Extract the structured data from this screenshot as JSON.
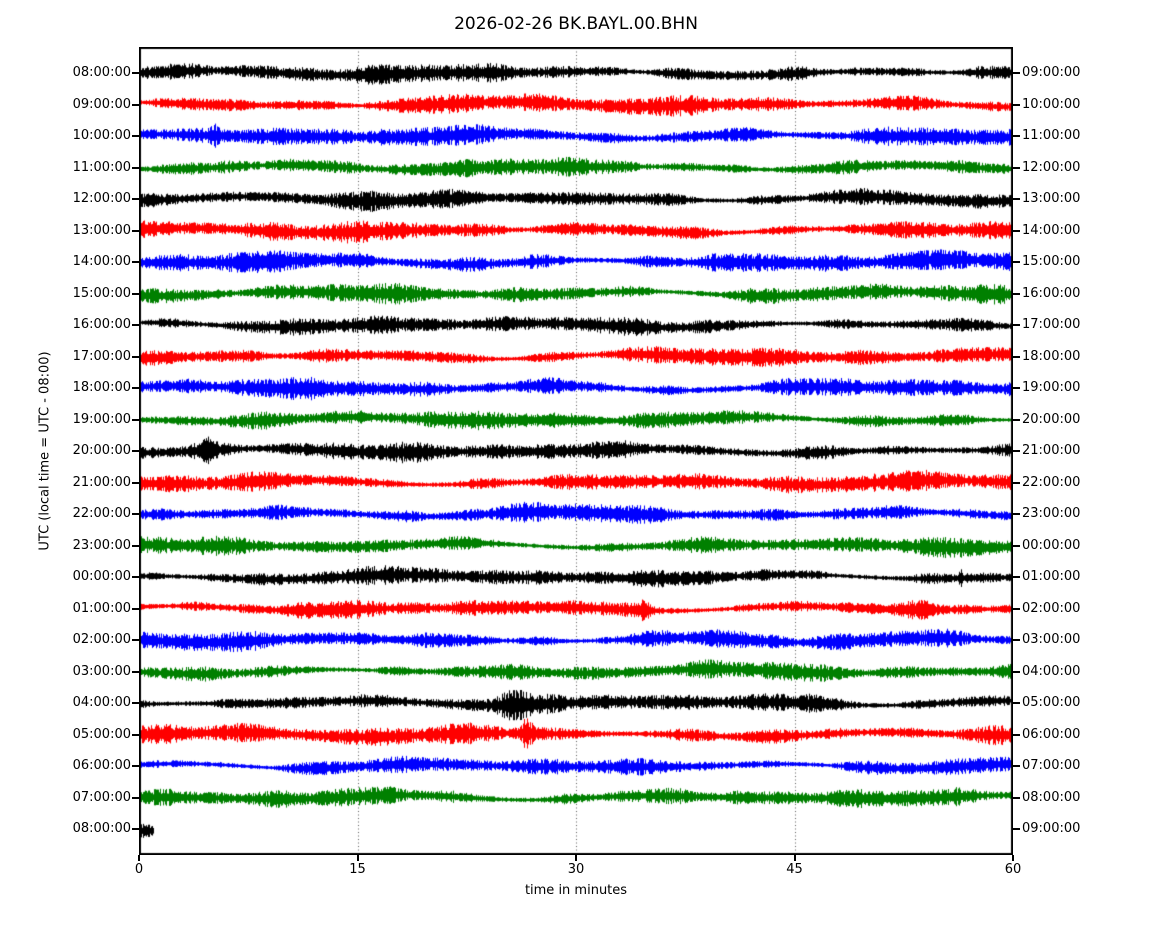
{
  "figure": {
    "title": "2026-02-26 BK.BAYL.00.BHN",
    "xlabel": "time in minutes",
    "ylabel": "UTC (local time = UTC - 08:00)"
  },
  "chart_data": {
    "type": "line",
    "variant": "seismogram-helicorder-dayplot",
    "title": "2026-02-26 BK.BAYL.00.BHN",
    "date": "2026-02-26",
    "seed_id": "BK.BAYL.00.BHN",
    "xlabel": "time in minutes",
    "ylabel": "UTC (local time = UTC - 08:00)",
    "xlim_minutes": [
      0,
      60
    ],
    "x_ticks": [
      "0",
      "15",
      "30",
      "45",
      "60"
    ],
    "grid_vertical_dotted_minutes": [
      15,
      30,
      45
    ],
    "minutes_per_row": 60,
    "timezone_note": "local time = UTC - 08:00",
    "color_cycle": [
      "#000000",
      "#ff0000",
      "#0000ff",
      "#008000"
    ],
    "traces": [
      {
        "utc_left": "08:00:00",
        "utc_right": "09:00:00",
        "color": "#000000",
        "minutes": 60,
        "seed": 101,
        "amp": 1.0
      },
      {
        "utc_left": "09:00:00",
        "utc_right": "10:00:00",
        "color": "#ff0000",
        "minutes": 60,
        "seed": 202,
        "amp": 1.05
      },
      {
        "utc_left": "10:00:00",
        "utc_right": "11:00:00",
        "color": "#0000ff",
        "minutes": 60,
        "seed": 303,
        "amp": 1.05
      },
      {
        "utc_left": "11:00:00",
        "utc_right": "12:00:00",
        "color": "#008000",
        "minutes": 60,
        "seed": 404,
        "amp": 0.95
      },
      {
        "utc_left": "12:00:00",
        "utc_right": "13:00:00",
        "color": "#000000",
        "minutes": 60,
        "seed": 505,
        "amp": 1.0
      },
      {
        "utc_left": "13:00:00",
        "utc_right": "14:00:00",
        "color": "#ff0000",
        "minutes": 60,
        "seed": 606,
        "amp": 1.05
      },
      {
        "utc_left": "14:00:00",
        "utc_right": "15:00:00",
        "color": "#0000ff",
        "minutes": 60,
        "seed": 707,
        "amp": 1.1
      },
      {
        "utc_left": "15:00:00",
        "utc_right": "16:00:00",
        "color": "#008000",
        "minutes": 60,
        "seed": 808,
        "amp": 1.0
      },
      {
        "utc_left": "16:00:00",
        "utc_right": "17:00:00",
        "color": "#000000",
        "minutes": 60,
        "seed": 909,
        "amp": 0.95
      },
      {
        "utc_left": "17:00:00",
        "utc_right": "18:00:00",
        "color": "#ff0000",
        "minutes": 60,
        "seed": 1010,
        "amp": 1.0
      },
      {
        "utc_left": "18:00:00",
        "utc_right": "19:00:00",
        "color": "#0000ff",
        "minutes": 60,
        "seed": 1111,
        "amp": 1.05
      },
      {
        "utc_left": "19:00:00",
        "utc_right": "20:00:00",
        "color": "#008000",
        "minutes": 60,
        "seed": 1212,
        "amp": 0.95
      },
      {
        "utc_left": "20:00:00",
        "utc_right": "21:00:00",
        "color": "#000000",
        "minutes": 60,
        "seed": 1313,
        "amp": 1.0
      },
      {
        "utc_left": "21:00:00",
        "utc_right": "22:00:00",
        "color": "#ff0000",
        "minutes": 60,
        "seed": 1414,
        "amp": 1.05
      },
      {
        "utc_left": "22:00:00",
        "utc_right": "23:00:00",
        "color": "#0000ff",
        "minutes": 60,
        "seed": 1515,
        "amp": 1.0
      },
      {
        "utc_left": "23:00:00",
        "utc_right": "00:00:00",
        "color": "#008000",
        "minutes": 60,
        "seed": 1616,
        "amp": 0.95
      },
      {
        "utc_left": "00:00:00",
        "utc_right": "01:00:00",
        "color": "#000000",
        "minutes": 60,
        "seed": 1717,
        "amp": 0.95
      },
      {
        "utc_left": "01:00:00",
        "utc_right": "02:00:00",
        "color": "#ff0000",
        "minutes": 60,
        "seed": 1818,
        "amp": 0.95
      },
      {
        "utc_left": "02:00:00",
        "utc_right": "03:00:00",
        "color": "#0000ff",
        "minutes": 60,
        "seed": 1919,
        "amp": 1.0
      },
      {
        "utc_left": "03:00:00",
        "utc_right": "04:00:00",
        "color": "#008000",
        "minutes": 60,
        "seed": 2020,
        "amp": 0.95
      },
      {
        "utc_left": "04:00:00",
        "utc_right": "05:00:00",
        "color": "#000000",
        "minutes": 60,
        "seed": 2121,
        "amp": 1.0
      },
      {
        "utc_left": "05:00:00",
        "utc_right": "06:00:00",
        "color": "#ff0000",
        "minutes": 60,
        "seed": 2222,
        "amp": 1.05
      },
      {
        "utc_left": "06:00:00",
        "utc_right": "07:00:00",
        "color": "#0000ff",
        "minutes": 60,
        "seed": 2323,
        "amp": 0.95
      },
      {
        "utc_left": "07:00:00",
        "utc_right": "08:00:00",
        "color": "#008000",
        "minutes": 60,
        "seed": 2424,
        "amp": 1.0
      },
      {
        "utc_left": "08:00:00",
        "utc_right": "09:00:00",
        "color": "#000000",
        "minutes": 1.0,
        "seed": 2525,
        "amp": 1.35
      }
    ],
    "events": [
      {
        "row": 2,
        "minute": 5.2,
        "width_min": 0.35,
        "boost": 1.9
      },
      {
        "row": 2,
        "minute": 16.5,
        "width_min": 0.8,
        "boost": 1.5
      },
      {
        "row": 12,
        "minute": 4.6,
        "width_min": 0.6,
        "boost": 1.8
      },
      {
        "row": 16,
        "minute": 56.4,
        "width_min": 0.15,
        "boost": 2.4
      },
      {
        "row": 17,
        "minute": 34.7,
        "width_min": 0.3,
        "boost": 1.9
      },
      {
        "row": 17,
        "minute": 53.8,
        "width_min": 0.9,
        "boost": 1.6
      },
      {
        "row": 20,
        "minute": 25.6,
        "width_min": 0.8,
        "boost": 1.9
      },
      {
        "row": 20,
        "minute": 46.5,
        "width_min": 1.0,
        "boost": 1.4
      },
      {
        "row": 21,
        "minute": 26.6,
        "width_min": 0.45,
        "boost": 2.8
      },
      {
        "row": 21,
        "minute": 47.5,
        "width_min": 1.0,
        "boost": 1.6
      }
    ]
  }
}
